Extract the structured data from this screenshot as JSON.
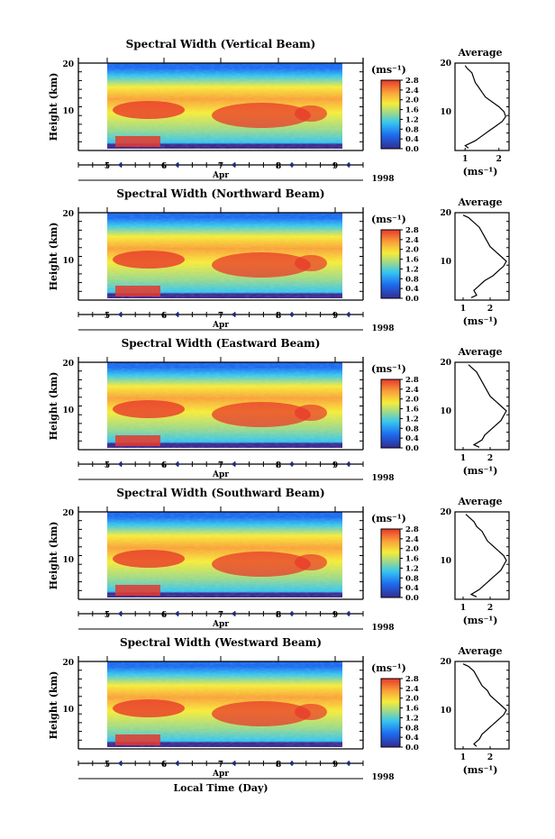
{
  "figure": {
    "xlabel": "Local Time (Day)",
    "month_label": "Apr",
    "year_label": "1998",
    "ylabel": "Height (km)",
    "units": "(ms⁻¹)",
    "avg_title": "Average",
    "colorbar_ticks": [
      "0.0",
      "0.4",
      "0.8",
      "1.2",
      "1.6",
      "2.0",
      "2.4",
      "2.8"
    ],
    "colors": {
      "low": "#3d2c8f",
      "blue": "#1e6cf0",
      "cyan": "#36c6f0",
      "green": "#9bd98c",
      "yellow": "#f6ec3a",
      "orange": "#f9a23a",
      "red": "#e8382b",
      "navy_tick": "#1a2a8a"
    }
  },
  "chart_data": [
    {
      "type": "heatmap",
      "title": "Spectral Width (Vertical Beam)",
      "x_ticks": [
        "5",
        "6",
        "7",
        "8",
        "9"
      ],
      "x_range_days": [
        4.55,
        9.5
      ],
      "y_ticks": [
        "20",
        "10"
      ],
      "ylim_km": [
        2,
        20
      ],
      "colorbar_range": [
        0.0,
        2.8
      ],
      "profile": {
        "type": "line",
        "title": "Average",
        "xlabel": "(ms⁻¹)",
        "x_ticks": [
          "1",
          "2"
        ],
        "xlim": [
          0.7,
          2.3
        ],
        "heights_km": [
          2.5,
          3,
          4,
          5,
          6,
          7,
          8,
          9,
          10,
          11,
          12,
          13,
          14,
          15,
          16,
          17,
          18,
          19,
          19.5
        ],
        "values": [
          1.1,
          1.0,
          1.3,
          1.5,
          1.7,
          1.9,
          2.1,
          2.2,
          2.15,
          2.0,
          1.8,
          1.6,
          1.5,
          1.4,
          1.3,
          1.25,
          1.2,
          1.05,
          1.0
        ]
      }
    },
    {
      "type": "heatmap",
      "title": "Spectral Width (Northward Beam)",
      "x_ticks": [
        "5",
        "6",
        "7",
        "8",
        "9"
      ],
      "x_range_days": [
        4.55,
        9.5
      ],
      "y_ticks": [
        "20",
        "10"
      ],
      "ylim_km": [
        2,
        20
      ],
      "colorbar_range": [
        0.0,
        2.8
      ],
      "profile": {
        "type": "line",
        "title": "Average",
        "xlabel": "(ms⁻¹)",
        "x_ticks": [
          "1",
          "2"
        ],
        "xlim": [
          0.7,
          2.7
        ],
        "heights_km": [
          2.5,
          3,
          4,
          5,
          6,
          7,
          8,
          9,
          10,
          11,
          12,
          13,
          14,
          15,
          16,
          17,
          18,
          19,
          19.5
        ],
        "values": [
          1.3,
          1.5,
          1.4,
          1.6,
          1.8,
          2.1,
          2.3,
          2.5,
          2.6,
          2.4,
          2.2,
          2.0,
          1.9,
          1.8,
          1.7,
          1.6,
          1.4,
          1.2,
          1.0
        ]
      }
    },
    {
      "type": "heatmap",
      "title": "Spectral Width (Eastward Beam)",
      "x_ticks": [
        "5",
        "6",
        "7",
        "8",
        "9"
      ],
      "x_range_days": [
        4.55,
        9.5
      ],
      "y_ticks": [
        "20",
        "10"
      ],
      "ylim_km": [
        2,
        20
      ],
      "colorbar_range": [
        0.0,
        2.8
      ],
      "profile": {
        "type": "line",
        "title": "Average",
        "xlabel": "(ms⁻¹)",
        "x_ticks": [
          "1",
          "2"
        ],
        "xlim": [
          0.7,
          2.7
        ],
        "heights_km": [
          2.5,
          3,
          4,
          5,
          6,
          7,
          8,
          9,
          10,
          11,
          12,
          13,
          14,
          15,
          16,
          17,
          18,
          19,
          19.5
        ],
        "values": [
          1.6,
          1.4,
          1.7,
          1.8,
          2.0,
          2.2,
          2.4,
          2.5,
          2.6,
          2.4,
          2.2,
          2.0,
          1.9,
          1.8,
          1.7,
          1.6,
          1.5,
          1.3,
          1.2
        ]
      }
    },
    {
      "type": "heatmap",
      "title": "Spectral Width (Southward Beam)",
      "x_ticks": [
        "5",
        "6",
        "7",
        "8",
        "9"
      ],
      "x_range_days": [
        4.55,
        9.5
      ],
      "y_ticks": [
        "20",
        "10"
      ],
      "ylim_km": [
        2,
        20
      ],
      "colorbar_range": [
        0.0,
        2.8
      ],
      "profile": {
        "type": "line",
        "title": "Average",
        "xlabel": "(ms⁻¹)",
        "x_ticks": [
          "1",
          "2"
        ],
        "xlim": [
          0.7,
          2.7
        ],
        "heights_km": [
          2.5,
          3,
          4,
          5,
          6,
          7,
          8,
          9,
          10,
          11,
          12,
          13,
          14,
          15,
          16,
          17,
          18,
          19,
          19.5
        ],
        "values": [
          1.5,
          1.3,
          1.6,
          1.8,
          2.0,
          2.2,
          2.4,
          2.5,
          2.6,
          2.5,
          2.3,
          2.1,
          1.9,
          1.8,
          1.7,
          1.5,
          1.4,
          1.2,
          1.1
        ]
      }
    },
    {
      "type": "heatmap",
      "title": "Spectral Width (Westward Beam)",
      "x_ticks": [
        "5",
        "6",
        "7",
        "8",
        "9"
      ],
      "x_range_days": [
        4.55,
        9.5
      ],
      "y_ticks": [
        "20",
        "10"
      ],
      "ylim_km": [
        2,
        20
      ],
      "colorbar_range": [
        0.0,
        2.8
      ],
      "profile": {
        "type": "line",
        "title": "Average",
        "xlabel": "(ms⁻¹)",
        "x_ticks": [
          "1",
          "2"
        ],
        "xlim": [
          0.7,
          2.7
        ],
        "heights_km": [
          2.5,
          3,
          4,
          5,
          6,
          7,
          8,
          9,
          10,
          11,
          12,
          13,
          14,
          15,
          16,
          17,
          18,
          19,
          19.5
        ],
        "values": [
          1.5,
          1.4,
          1.6,
          1.7,
          1.9,
          2.1,
          2.3,
          2.5,
          2.6,
          2.4,
          2.2,
          2.0,
          1.9,
          1.7,
          1.6,
          1.5,
          1.4,
          1.2,
          1.0
        ]
      }
    }
  ]
}
